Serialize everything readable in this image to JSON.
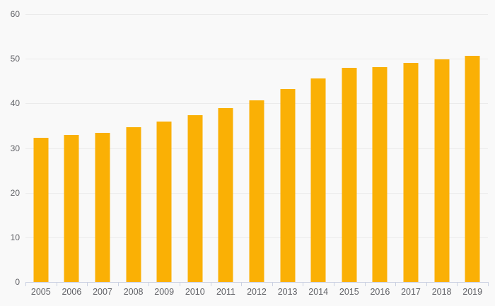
{
  "chart_data": {
    "type": "bar",
    "title": "",
    "xlabel": "",
    "ylabel": "",
    "categories": [
      "2005",
      "2006",
      "2007",
      "2008",
      "2009",
      "2010",
      "2011",
      "2012",
      "2013",
      "2014",
      "2015",
      "2016",
      "2017",
      "2018",
      "2019"
    ],
    "values": [
      32.3,
      32.9,
      33.4,
      34.7,
      36.0,
      37.4,
      38.9,
      40.7,
      43.2,
      45.6,
      48.0,
      48.2,
      49.0,
      49.8,
      50.6
    ],
    "ylim": [
      0,
      60
    ],
    "y_ticks": [
      0,
      10,
      20,
      30,
      40,
      50,
      60
    ],
    "grid": "horizontal-only",
    "legend": "none",
    "colors": {
      "bar": "#FAB005",
      "background": "#f9f9f9",
      "gridline": "#ebebeb",
      "axis_line": "#cbd1e2",
      "tick_mark": "#cbd1e2",
      "label_text": "#606166"
    }
  }
}
